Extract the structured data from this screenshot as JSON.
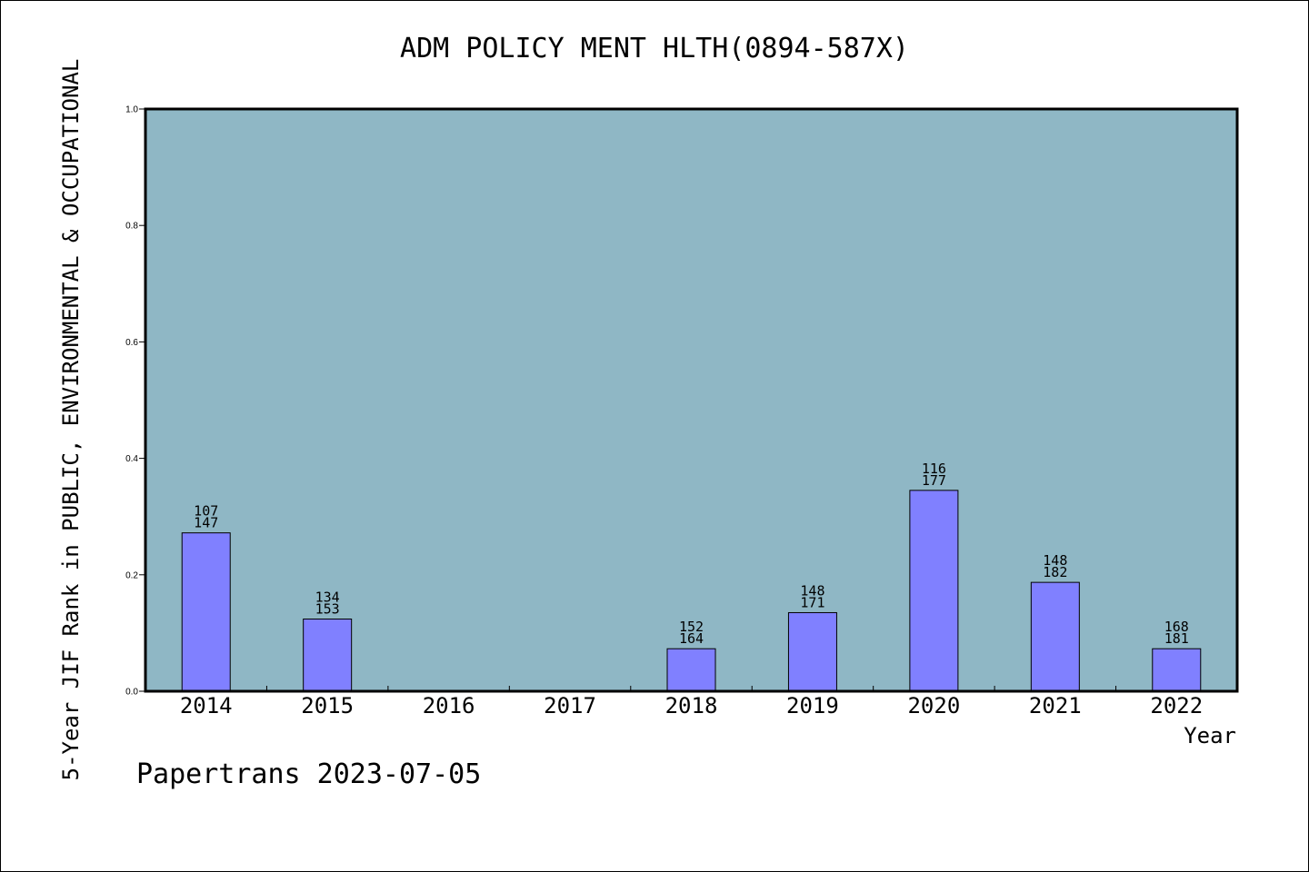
{
  "chart_data": {
    "type": "bar",
    "title": "ADM POLICY MENT HLTH(0894-587X)",
    "xlabel": "Year",
    "ylabel": "5-Year JIF Rank in PUBLIC, ENVIRONMENTAL & OCCUPATIONAL",
    "ylim": [
      0,
      1.0
    ],
    "yticks": [
      "0.0",
      "0.2",
      "0.4",
      "0.6",
      "0.8",
      "1.0"
    ],
    "grid": false,
    "categories": [
      "2014",
      "2015",
      "2016",
      "2017",
      "2018",
      "2019",
      "2020",
      "2021",
      "2022"
    ],
    "values": [
      0.272,
      0.124,
      null,
      null,
      0.073,
      0.135,
      0.345,
      0.187,
      0.073
    ],
    "rank": [
      "107",
      "134",
      null,
      null,
      "152",
      "148",
      "116",
      "148",
      "168"
    ],
    "total": [
      "147",
      "153",
      null,
      null,
      "164",
      "171",
      "177",
      "182",
      "181"
    ],
    "bar_color": "#8080ff",
    "plot_background": "#8fb7c5"
  },
  "footer": "Papertrans 2023-07-05"
}
